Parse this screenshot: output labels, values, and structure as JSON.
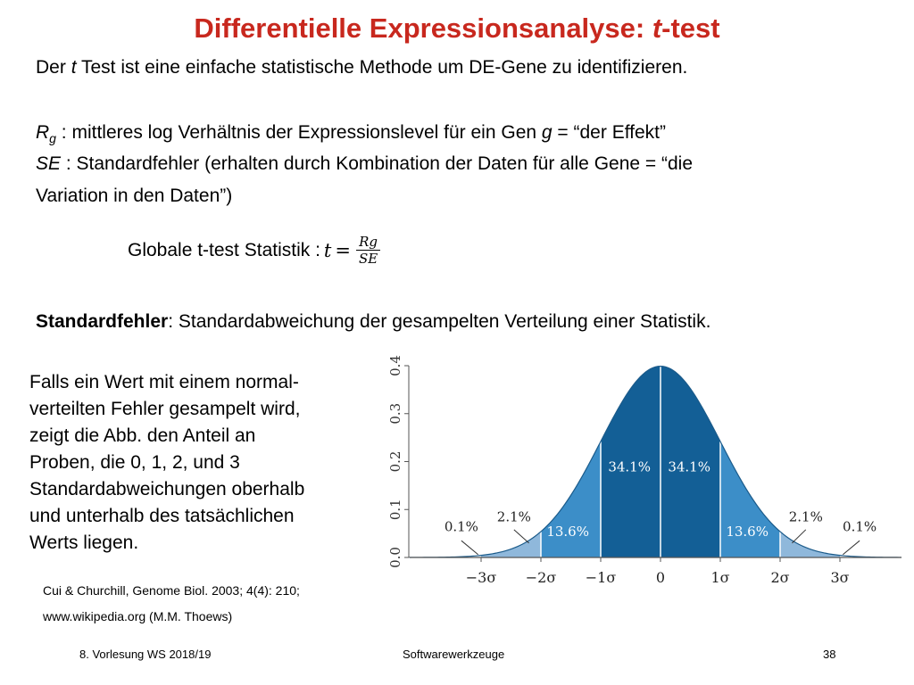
{
  "slide": {
    "title_main": "Differentielle Expressionsanalyse: ",
    "title_italic": "t",
    "title_end": "-test",
    "intro_a": "Der ",
    "intro_t": "t",
    "intro_b": " Test ist eine einfache statistische Methode um DE-Gene zu identifizieren.",
    "rg_symbol": "R",
    "rg_sub": "g",
    "rg_text_a": " : mittleres log Verhältnis der Expressionslevel für ein Gen ",
    "rg_g": "g",
    "rg_text_b": " = “der Effekt”",
    "se_symbol": "SE",
    "se_text": " : Standardfehler (erhalten durch Kombination der Daten für alle Gene = “die",
    "se_text2": "Variation in den Daten”)",
    "formula_label": "Globale t-test Statistik : ",
    "formula_t": "t",
    "formula_eq": " =",
    "formula_num": "Rg",
    "formula_den": "SE",
    "stdfehler_bold": "Standardfehler",
    "stdfehler_text": ": Standardabweichung der gesampelten Verteilung einer Statistik.",
    "paragraph": [
      "Falls ein Wert mit einem normal-",
      "verteilten Fehler gesampelt wird,",
      "zeigt die Abb. den Anteil an",
      "Proben, die  0, 1, 2, und 3",
      "Standardabweichungen oberhalb",
      "und unterhalb des tatsächlichen",
      "Werts liegen."
    ],
    "ref1": "Cui & Churchill, Genome Biol. 2003; 4(4): 210;",
    "ref2": "www.wikipedia.org (M.M. Thoews)"
  },
  "footer": {
    "left": "8. Vorlesung WS 2018/19",
    "center": "Softwarewerkzeuge",
    "right": "38"
  },
  "chart_data": {
    "type": "area",
    "x_ticks": [
      "−3σ",
      "−2σ",
      "−1σ",
      "0",
      "1σ",
      "2σ",
      "3σ"
    ],
    "y_ticks": [
      "0.0",
      "0.1",
      "0.2",
      "0.3",
      "0.4"
    ],
    "xlim": [
      -3.5,
      4.2
    ],
    "ylim": [
      0,
      0.4
    ],
    "regions": [
      {
        "from": -4.2,
        "to": -3,
        "color": "#ffffff",
        "label": "0.1%"
      },
      {
        "from": -3,
        "to": -2,
        "color": "#8fb8db",
        "label": "2.1%"
      },
      {
        "from": -2,
        "to": -1,
        "color": "#3c8ec8",
        "label": "13.6%"
      },
      {
        "from": -1,
        "to": 0,
        "color": "#135f96",
        "label": "34.1%"
      },
      {
        "from": 0,
        "to": 1,
        "color": "#135f96",
        "label": "34.1%"
      },
      {
        "from": 1,
        "to": 2,
        "color": "#3c8ec8",
        "label": "13.6%"
      },
      {
        "from": 2,
        "to": 3,
        "color": "#8fb8db",
        "label": "2.1%"
      },
      {
        "from": 3,
        "to": 4.2,
        "color": "#ffffff",
        "label": "0.1%"
      }
    ]
  }
}
